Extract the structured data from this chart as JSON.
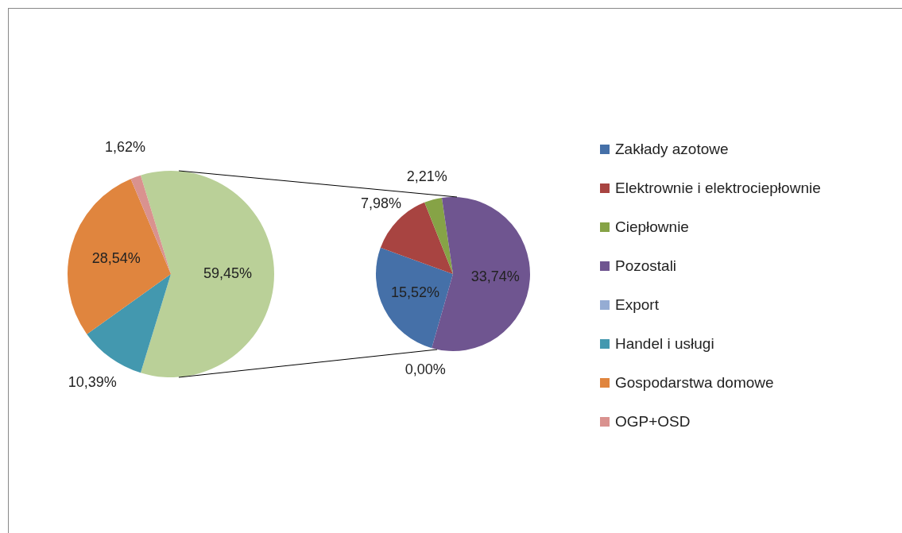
{
  "chart_data": [
    {
      "type": "pie",
      "categories": [
        null,
        "Handel i usługi",
        "Gospodarstwa domowe",
        "OGP+OSD"
      ],
      "values": [
        59.45,
        10.39,
        28.54,
        1.62
      ],
      "colors": [
        "#bad098",
        "#4398af",
        "#e0853e",
        "#d9928f"
      ],
      "value_labels": [
        "59,45%",
        "10,39%",
        "28,54%",
        "1,62%"
      ],
      "legend": "right"
    },
    {
      "type": "pie",
      "categories": [
        "Zakłady azotowe",
        "Elektrownie i elektrociepłownie",
        "Ciepłownie",
        "Pozostali",
        "Export"
      ],
      "values": [
        15.52,
        7.98,
        2.21,
        33.74,
        0
      ],
      "colors": [
        "#4570a8",
        "#a84441",
        "#86a346",
        "#6f5590",
        "#95acd3"
      ],
      "value_labels": [
        "15,52%",
        "7,98%",
        "2,21%",
        "33,74%",
        "0,00%"
      ],
      "legend": "right"
    }
  ]
}
